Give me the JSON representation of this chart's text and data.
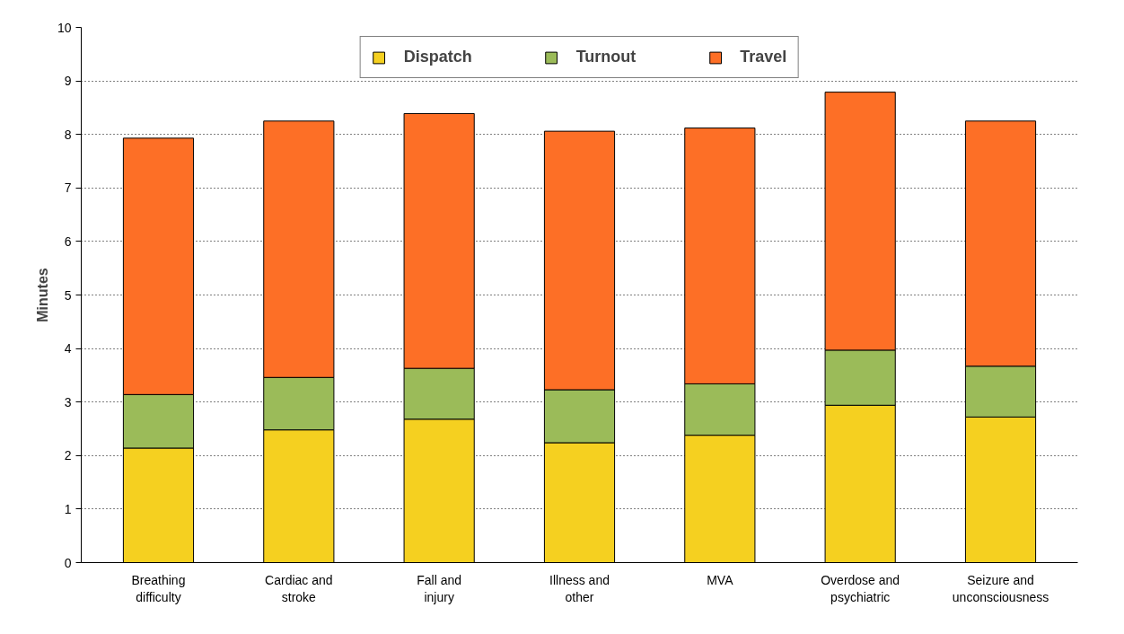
{
  "chart_data": {
    "type": "bar",
    "stacked": true,
    "ylabel": "Minutes",
    "categories": [
      "Breathing difficulty",
      "Cardiac and stroke",
      "Fall and injury",
      "Illness and other",
      "MVA",
      "Overdose and psychiatric",
      "Seizure and unconsciousness"
    ],
    "series": [
      {
        "name": "Dispatch",
        "color": "#f5d020",
        "values": [
          2.14,
          2.48,
          2.68,
          2.24,
          2.38,
          2.94,
          2.72
        ]
      },
      {
        "name": "Turnout",
        "color": "#9bbb59",
        "values": [
          1.0,
          0.98,
          0.95,
          0.99,
          0.96,
          1.03,
          0.95
        ]
      },
      {
        "name": "Travel",
        "color": "#fd6f26",
        "values": [
          4.79,
          4.79,
          4.76,
          4.83,
          4.78,
          4.82,
          4.58
        ]
      }
    ],
    "ylim": [
      0,
      10
    ],
    "yticks": [
      0,
      1,
      2,
      3,
      4,
      5,
      6,
      7,
      8,
      9,
      10
    ],
    "grid": "y",
    "legend": "top"
  }
}
